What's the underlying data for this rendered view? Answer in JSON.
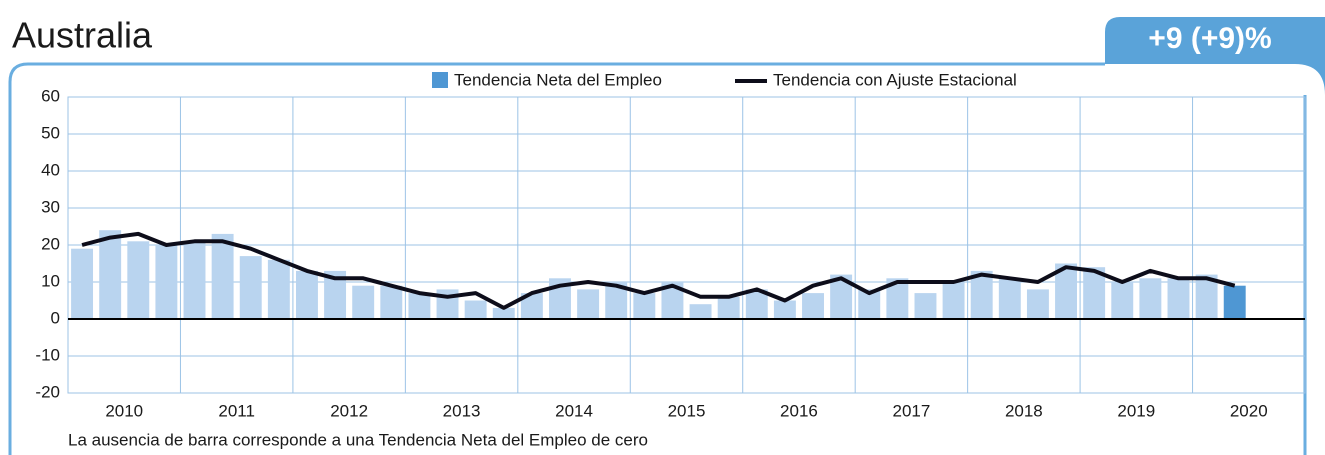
{
  "chart_data": {
    "type": "bar",
    "title": "Australia",
    "badge": "+9 (+9)%",
    "note": "La ausencia de barra corresponde a una Tendencia Neta del Empleo de cero",
    "years": [
      "2010",
      "2011",
      "2012",
      "2013",
      "2014",
      "2015",
      "2016",
      "2017",
      "2018",
      "2019",
      "2020"
    ],
    "categories": [
      null,
      null,
      null,
      null,
      null,
      null,
      null,
      null,
      null,
      null,
      null,
      null,
      null,
      null,
      null,
      null,
      null,
      null,
      null,
      null,
      null,
      null,
      null,
      null,
      null,
      null,
      null,
      null,
      null,
      null,
      null,
      null,
      null,
      null,
      null,
      null,
      null,
      null,
      null,
      null,
      null,
      null
    ],
    "series": [
      {
        "name": "Tendencia Neta del Empleo",
        "type": "bar",
        "color": "#b9d4ef",
        "highlight_color": "#4f97d3",
        "values": [
          19,
          24,
          21,
          20,
          21,
          23,
          17,
          16,
          13,
          13,
          9,
          9,
          7,
          8,
          5,
          3,
          7,
          11,
          8,
          10,
          7,
          10,
          4,
          6,
          8,
          5,
          7,
          12,
          8,
          11,
          7,
          10,
          13,
          11,
          8,
          15,
          14,
          10,
          11,
          11,
          12,
          9
        ]
      },
      {
        "name": "Tendencia con Ajuste Estacional",
        "type": "line",
        "color": "#0d0d1a",
        "values": [
          20,
          22,
          23,
          20,
          21,
          21,
          19,
          16,
          13,
          11,
          11,
          9,
          7,
          6,
          7,
          3,
          7,
          9,
          10,
          9,
          7,
          9,
          6,
          6,
          8,
          5,
          9,
          11,
          7,
          10,
          10,
          10,
          12,
          11,
          10,
          14,
          13,
          10,
          13,
          11,
          11,
          9
        ]
      }
    ],
    "ylim": [
      -20,
      60
    ],
    "yticks": [
      -20,
      -10,
      0,
      10,
      20,
      30,
      40,
      50,
      60
    ],
    "grid": true,
    "legend": "top"
  }
}
